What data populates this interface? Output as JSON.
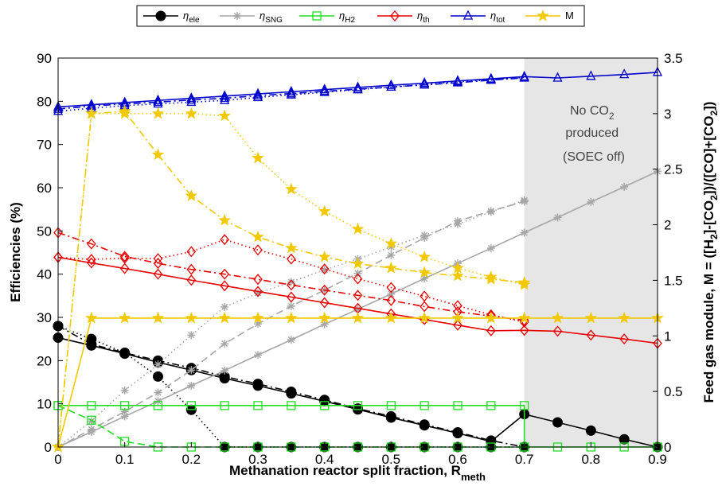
{
  "chart_data": {
    "type": "line",
    "xlabel": "Methanation reactor split fraction, R",
    "xlabel_sub": "meth",
    "ylabel": "Efficiencies (%)",
    "ylabel_right_parts": [
      {
        "t": "Feed gas module, M = ([H",
        "s": ""
      },
      {
        "t": "2",
        "s": "sub"
      },
      {
        "t": "]-[CO",
        "s": ""
      },
      {
        "t": "2",
        "s": "sub"
      },
      {
        "t": "])/([CO]+[CO",
        "s": ""
      },
      {
        "t": "2",
        "s": "sub"
      },
      {
        "t": "])",
        "s": ""
      }
    ],
    "xlim": [
      0,
      0.9
    ],
    "ylim": [
      0,
      90
    ],
    "y2lim": [
      0,
      3.5
    ],
    "xticks": [
      "0",
      "0.1",
      "0.2",
      "0.3",
      "0.4",
      "0.5",
      "0.6",
      "0.7",
      "0.8",
      "0.9"
    ],
    "yticks": [
      "0",
      "10",
      "20",
      "30",
      "40",
      "50",
      "60",
      "70",
      "80",
      "90"
    ],
    "y2ticks": [
      "0",
      "0.5",
      "1",
      "1.5",
      "2",
      "2.5",
      "3",
      "3.5"
    ],
    "shaded_region": {
      "x": [
        0.7,
        0.9
      ]
    },
    "annotation": {
      "line1_main": "No CO",
      "line1_sub": "2",
      "line2": "produced",
      "line3": "(SOEC off)"
    },
    "legend": {
      "placement": "top",
      "entries": [
        {
          "main": "η",
          "sub": "ele",
          "color": "#000000",
          "marker": "circle"
        },
        {
          "main": "η",
          "sub": "SNG",
          "color": "#a6a6a6",
          "marker": "star"
        },
        {
          "main": "η",
          "sub": "H2",
          "color": "#22dd22",
          "marker": "square"
        },
        {
          "main": "η",
          "sub": "th",
          "color": "#e60000",
          "marker": "diamond"
        },
        {
          "main": "η",
          "sub": "tot",
          "color": "#0000cc",
          "marker": "triangle"
        },
        {
          "main": "M",
          "sub": "",
          "color": "#f2c900",
          "marker": "pentagram"
        }
      ]
    },
    "series": [
      {
        "key": "ele",
        "color": "#000000",
        "marker": "circle",
        "style": "solid",
        "axis": "left",
        "x": [
          0,
          0.05,
          0.1,
          0.15,
          0.2,
          0.25,
          0.3,
          0.35,
          0.4,
          0.45,
          0.5,
          0.55,
          0.6,
          0.65,
          0.7,
          0.75,
          0.8,
          0.85,
          0.9
        ],
        "y": [
          25.3,
          23.5,
          21.6,
          19.6,
          17.8,
          15.9,
          14.2,
          12.4,
          10.6,
          8.7,
          6.8,
          5.0,
          3.2,
          1.3,
          7.6,
          5.7,
          3.8,
          1.8,
          0
        ]
      },
      {
        "key": "ele",
        "color": "#000000",
        "marker": "circle",
        "style": "dashdot",
        "axis": "left",
        "x": [
          0,
          0.05,
          0.1,
          0.15,
          0.2,
          0.25,
          0.3,
          0.35,
          0.4,
          0.45,
          0.5,
          0.55,
          0.6,
          0.65,
          0.7
        ],
        "y": [
          28,
          23.8,
          21.8,
          20,
          18.3,
          16.3,
          14.6,
          12.8,
          10.9,
          8.9,
          7.1,
          5.2,
          3.4,
          1.5,
          0
        ]
      },
      {
        "key": "ele",
        "color": "#000000",
        "marker": "circle",
        "style": "dotted",
        "axis": "left",
        "x": [
          0,
          0.05,
          0.1,
          0.15,
          0.2,
          0.25,
          0.3,
          0.35,
          0.4,
          0.45,
          0.5,
          0.55,
          0.6,
          0.65,
          0.7
        ],
        "y": [
          28,
          25,
          21.8,
          16.3,
          8.6,
          0,
          0,
          0,
          0,
          0,
          0,
          0,
          0,
          0,
          0
        ]
      },
      {
        "key": "sng",
        "color": "#a6a6a6",
        "marker": "star",
        "style": "solid",
        "axis": "left",
        "x": [
          0,
          0.05,
          0.1,
          0.15,
          0.2,
          0.25,
          0.3,
          0.35,
          0.4,
          0.45,
          0.5,
          0.55,
          0.6,
          0.65,
          0.7,
          0.75,
          0.8,
          0.85,
          0.9
        ],
        "y": [
          0,
          3.5,
          7.1,
          10.6,
          14.2,
          17.7,
          21.3,
          24.8,
          28.4,
          31.9,
          35.4,
          39,
          42.5,
          46,
          49.6,
          53.1,
          56.7,
          60.2,
          63.8
        ]
      },
      {
        "key": "sng",
        "color": "#a6a6a6",
        "marker": "star",
        "style": "dashed",
        "axis": "left",
        "x": [
          0,
          0.05,
          0.1,
          0.15,
          0.2,
          0.25,
          0.3,
          0.35,
          0.4,
          0.45,
          0.5,
          0.55,
          0.6,
          0.65,
          0.7
        ],
        "y": [
          0,
          4.1,
          8.2,
          12.6,
          17.8,
          23.9,
          28.5,
          32.6,
          36.3,
          40.2,
          44.4,
          48.4,
          52.3,
          54.6,
          56.8
        ]
      },
      {
        "key": "sng",
        "color": "#a6a6a6",
        "marker": "star",
        "style": "dotted",
        "axis": "left",
        "x": [
          0,
          0.05,
          0.1,
          0.15,
          0.2,
          0.25,
          0.3,
          0.35,
          0.4,
          0.45,
          0.5,
          0.55,
          0.6,
          0.65,
          0.7
        ],
        "y": [
          0,
          6,
          13.1,
          19.1,
          25.9,
          32.4,
          35.6,
          38.2,
          41,
          43.5,
          46.3,
          49,
          51.6,
          54.4,
          57.1
        ]
      },
      {
        "key": "h2",
        "color": "#22dd22",
        "marker": "square",
        "style": "solid",
        "axis": "left",
        "x": [
          0,
          0.05,
          0.1,
          0.15,
          0.2,
          0.25,
          0.3,
          0.35,
          0.4,
          0.45,
          0.5,
          0.55,
          0.6,
          0.65,
          0.7,
          0.7,
          0.75,
          0.8,
          0.85,
          0.9
        ],
        "y": [
          9.6,
          9.6,
          9.6,
          9.6,
          9.6,
          9.6,
          9.6,
          9.6,
          9.6,
          9.6,
          9.6,
          9.6,
          9.6,
          9.6,
          9.6,
          0,
          0,
          0,
          0,
          0
        ]
      },
      {
        "key": "h2",
        "color": "#22dd22",
        "marker": "square",
        "style": "dashed",
        "axis": "left",
        "x": [
          0,
          0.05,
          0.1,
          0.15,
          0.2,
          0.25,
          0.3,
          0.35,
          0.4,
          0.45,
          0.5,
          0.55,
          0.6,
          0.65,
          0.7
        ],
        "y": [
          9.6,
          6.2,
          1.3,
          0,
          0,
          0,
          0,
          0,
          0,
          0,
          0,
          0,
          0,
          0,
          0
        ]
      },
      {
        "key": "th",
        "color": "#e60000",
        "marker": "diamond",
        "style": "solid",
        "axis": "left",
        "x": [
          0,
          0.05,
          0.1,
          0.15,
          0.2,
          0.25,
          0.3,
          0.35,
          0.4,
          0.45,
          0.5,
          0.55,
          0.6,
          0.65,
          0.7,
          0.75,
          0.8,
          0.85,
          0.9
        ],
        "y": [
          43.9,
          42.6,
          41.3,
          40,
          38.6,
          37.3,
          36,
          34.7,
          33.4,
          32.1,
          30.8,
          29.5,
          28.2,
          26.9,
          27,
          26.8,
          25.9,
          25,
          24
        ]
      },
      {
        "key": "th",
        "color": "#e60000",
        "marker": "diamond",
        "style": "dashdot",
        "axis": "left",
        "x": [
          0,
          0.05,
          0.1,
          0.15,
          0.2,
          0.25,
          0.3,
          0.35,
          0.4,
          0.45,
          0.5,
          0.55,
          0.6,
          0.65,
          0.7
        ],
        "y": [
          49.6,
          47,
          44.1,
          42.5,
          41.1,
          40,
          38.8,
          37.5,
          36.3,
          35.1,
          33.9,
          32.5,
          31.3,
          30.3,
          29.3
        ]
      },
      {
        "key": "th",
        "color": "#e60000",
        "marker": "diamond",
        "style": "dotted",
        "axis": "left",
        "x": [
          0,
          0.05,
          0.1,
          0.15,
          0.2,
          0.25,
          0.3,
          0.35,
          0.4,
          0.45,
          0.5,
          0.55,
          0.6,
          0.65,
          0.7
        ],
        "y": [
          43.9,
          43.4,
          43.7,
          43.6,
          45.2,
          48,
          45.6,
          43.5,
          41.2,
          38.9,
          36.9,
          34.9,
          32.7,
          30.6,
          28.9
        ]
      },
      {
        "key": "tot",
        "color": "#0000cc",
        "marker": "triangle",
        "style": "solid",
        "axis": "left",
        "x": [
          0,
          0.05,
          0.1,
          0.15,
          0.2,
          0.25,
          0.3,
          0.35,
          0.4,
          0.45,
          0.5,
          0.55,
          0.6,
          0.65,
          0.7,
          0.75,
          0.8,
          0.85,
          0.9
        ],
        "y": [
          78.7,
          79.2,
          79.7,
          80.2,
          80.7,
          81.2,
          81.7,
          82.2,
          82.7,
          83.2,
          83.7,
          84.2,
          84.7,
          85.2,
          85.7,
          85.4,
          85.8,
          86.2,
          86.7
        ]
      },
      {
        "key": "tot",
        "color": "#0000cc",
        "marker": "triangle",
        "style": "dashdot",
        "axis": "left",
        "x": [
          0,
          0.05,
          0.1,
          0.15,
          0.2,
          0.25,
          0.3,
          0.35,
          0.4,
          0.45,
          0.5,
          0.55,
          0.6,
          0.65,
          0.7
        ],
        "y": [
          78.2,
          78.9,
          79.4,
          79.8,
          80.3,
          80.7,
          81.3,
          81.8,
          82.3,
          82.8,
          83.3,
          83.8,
          84.3,
          84.9,
          85.4
        ]
      },
      {
        "key": "tot",
        "color": "#0000cc",
        "marker": "triangle",
        "style": "dotted",
        "axis": "left",
        "x": [
          0,
          0.05,
          0.1,
          0.15,
          0.2,
          0.25,
          0.3,
          0.35,
          0.4,
          0.45,
          0.5,
          0.55,
          0.6,
          0.65,
          0.7
        ],
        "y": [
          77.7,
          78.4,
          79,
          79.4,
          79.8,
          80.2,
          80.9,
          81.5,
          82.1,
          82.7,
          83.3,
          83.9,
          84.5,
          85,
          85.5
        ]
      },
      {
        "key": "m",
        "color": "#f2c900",
        "marker": "pentagram",
        "style": "solid",
        "axis": "right",
        "x": [
          0,
          0.05,
          0.1,
          0.15,
          0.2,
          0.25,
          0.3,
          0.35,
          0.4,
          0.45,
          0.5,
          0.55,
          0.6,
          0.65,
          0.7,
          0.75,
          0.8,
          0.85,
          0.9
        ],
        "y": [
          0,
          1.16,
          1.16,
          1.16,
          1.16,
          1.16,
          1.16,
          1.16,
          1.16,
          1.16,
          1.16,
          1.16,
          1.16,
          1.16,
          1.16,
          1.16,
          1.16,
          1.16,
          1.16
        ]
      },
      {
        "key": "m",
        "color": "#f2c900",
        "marker": "pentagram",
        "style": "dashdot",
        "axis": "right",
        "x": [
          0,
          0.05,
          0.1,
          0.15,
          0.2,
          0.25,
          0.3,
          0.35,
          0.4,
          0.45,
          0.5,
          0.55,
          0.6,
          0.65,
          0.7
        ],
        "y": [
          0,
          3.0,
          3.02,
          2.63,
          2.26,
          2.04,
          1.89,
          1.79,
          1.71,
          1.65,
          1.61,
          1.57,
          1.54,
          1.51,
          1.48
        ]
      },
      {
        "key": "m",
        "color": "#f2c900",
        "marker": "pentagram",
        "style": "dotted",
        "axis": "right",
        "x": [
          0,
          0.05,
          0.1,
          0.15,
          0.2,
          0.25,
          0.3,
          0.35,
          0.4,
          0.45,
          0.5,
          0.55,
          0.6,
          0.65,
          0.7
        ],
        "y": [
          0,
          3.0,
          3.0,
          3.0,
          3.0,
          2.98,
          2.6,
          2.32,
          2.12,
          1.96,
          1.83,
          1.71,
          1.61,
          1.53,
          1.46
        ]
      }
    ]
  }
}
